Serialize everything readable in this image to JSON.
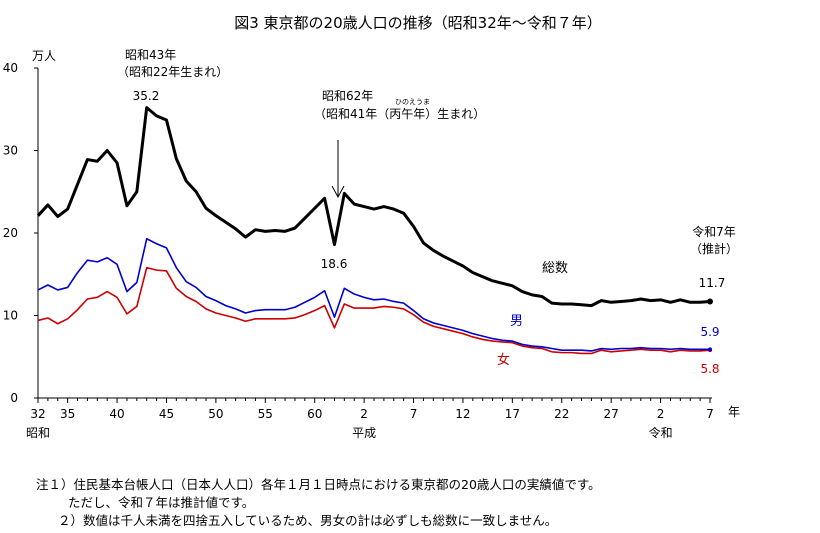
{
  "chart_data": {
    "type": "line",
    "title": "図3 東京都の20歳人口の推移（昭和32年〜令和７年）",
    "ylabel": "万人",
    "xlabel": "年",
    "ylim": [
      0,
      40
    ],
    "yticks": [
      "0",
      "10",
      "20",
      "30",
      "40"
    ],
    "x_start": 1957,
    "x_end": 2025,
    "xticks": [
      {
        "year": 1957,
        "label": "32"
      },
      {
        "year": 1960,
        "label": "35"
      },
      {
        "year": 1965,
        "label": "40"
      },
      {
        "year": 1970,
        "label": "45"
      },
      {
        "year": 1975,
        "label": "50"
      },
      {
        "year": 1980,
        "label": "55"
      },
      {
        "year": 1985,
        "label": "60"
      },
      {
        "year": 1990,
        "label": "2"
      },
      {
        "year": 1995,
        "label": "7"
      },
      {
        "year": 2000,
        "label": "12"
      },
      {
        "year": 2005,
        "label": "17"
      },
      {
        "year": 2010,
        "label": "22"
      },
      {
        "year": 2015,
        "label": "27"
      },
      {
        "year": 2020,
        "label": "2"
      },
      {
        "year": 2025,
        "label": "7"
      }
    ],
    "eras": [
      {
        "label": "昭和",
        "year": 1957
      },
      {
        "label": "平成",
        "year": 1990
      },
      {
        "label": "令和",
        "year": 2020
      }
    ],
    "grid": false,
    "series": [
      {
        "name": "総数",
        "color": "#000000",
        "values": [
          22.1,
          23.4,
          22.0,
          22.9,
          25.9,
          28.9,
          28.7,
          30.0,
          28.5,
          23.3,
          25.0,
          35.2,
          34.2,
          33.7,
          29.0,
          26.3,
          25.0,
          23.0,
          22.1,
          21.3,
          20.5,
          19.5,
          20.4,
          20.2,
          20.3,
          20.2,
          20.6,
          21.8,
          23.0,
          24.2,
          18.6,
          24.8,
          23.5,
          23.2,
          22.9,
          23.2,
          22.9,
          22.4,
          20.8,
          18.8,
          17.9,
          17.2,
          16.6,
          16.0,
          15.2,
          14.7,
          14.2,
          13.9,
          13.6,
          12.9,
          12.5,
          12.3,
          11.5,
          11.4,
          11.4,
          11.3,
          11.2,
          11.8,
          11.6,
          11.7,
          11.8,
          12.0,
          11.8,
          11.9,
          11.6,
          11.9,
          11.6,
          11.6,
          11.7
        ]
      },
      {
        "name": "男",
        "color": "#0000cc",
        "values": [
          13.1,
          13.7,
          13.1,
          13.4,
          15.2,
          16.7,
          16.5,
          17.0,
          16.2,
          12.9,
          14.0,
          19.3,
          18.7,
          18.2,
          15.8,
          14.1,
          13.4,
          12.3,
          11.8,
          11.2,
          10.8,
          10.3,
          10.6,
          10.7,
          10.7,
          10.7,
          11.0,
          11.6,
          12.2,
          13.0,
          9.8,
          13.3,
          12.6,
          12.2,
          11.9,
          12.0,
          11.7,
          11.5,
          10.6,
          9.6,
          9.1,
          8.8,
          8.5,
          8.2,
          7.8,
          7.5,
          7.2,
          7.0,
          6.9,
          6.5,
          6.3,
          6.2,
          6.0,
          5.8,
          5.8,
          5.8,
          5.7,
          6.0,
          5.9,
          6.0,
          6.0,
          6.1,
          6.0,
          6.0,
          5.9,
          6.0,
          5.9,
          5.9,
          5.9
        ]
      },
      {
        "name": "女",
        "color": "#cc0000",
        "values": [
          9.4,
          9.7,
          9.0,
          9.6,
          10.7,
          12.0,
          12.2,
          12.9,
          12.2,
          10.2,
          11.1,
          15.8,
          15.5,
          15.4,
          13.3,
          12.3,
          11.7,
          10.8,
          10.3,
          10.0,
          9.7,
          9.3,
          9.6,
          9.6,
          9.6,
          9.6,
          9.7,
          10.1,
          10.6,
          11.2,
          8.5,
          11.4,
          10.9,
          10.9,
          10.9,
          11.1,
          11.0,
          10.8,
          10.1,
          9.2,
          8.7,
          8.4,
          8.1,
          7.8,
          7.4,
          7.1,
          6.9,
          6.8,
          6.7,
          6.3,
          6.1,
          6.0,
          5.6,
          5.5,
          5.5,
          5.4,
          5.4,
          5.8,
          5.6,
          5.7,
          5.8,
          5.9,
          5.8,
          5.8,
          5.6,
          5.8,
          5.7,
          5.7,
          5.8
        ]
      }
    ],
    "annotations": {
      "peak_title": "昭和43年",
      "peak_sub": "（昭和22年生まれ）",
      "peak_value": "35.2",
      "dip_title": "昭和62年",
      "dip_sub": "（昭和41年（丙午年）生まれ）",
      "dip_ruby": "ひのえうま",
      "dip_value": "18.6",
      "end_title": "令和7年",
      "end_sub": "（推計）",
      "total_label": "総数",
      "total_end": "11.7",
      "male_label": "男",
      "male_end": "5.9",
      "female_label": "女",
      "female_end": "5.8"
    }
  },
  "notes": {
    "line1": "注１）住民基本台帳人口（日本人人口）各年１月１日時点における東京都の20歳人口の実績値です。",
    "line2": "ただし、令和７年は推計値です。",
    "line3": "２）数値は千人未満を四捨五入しているため、男女の計は必ずしも総数に一致しません。"
  }
}
